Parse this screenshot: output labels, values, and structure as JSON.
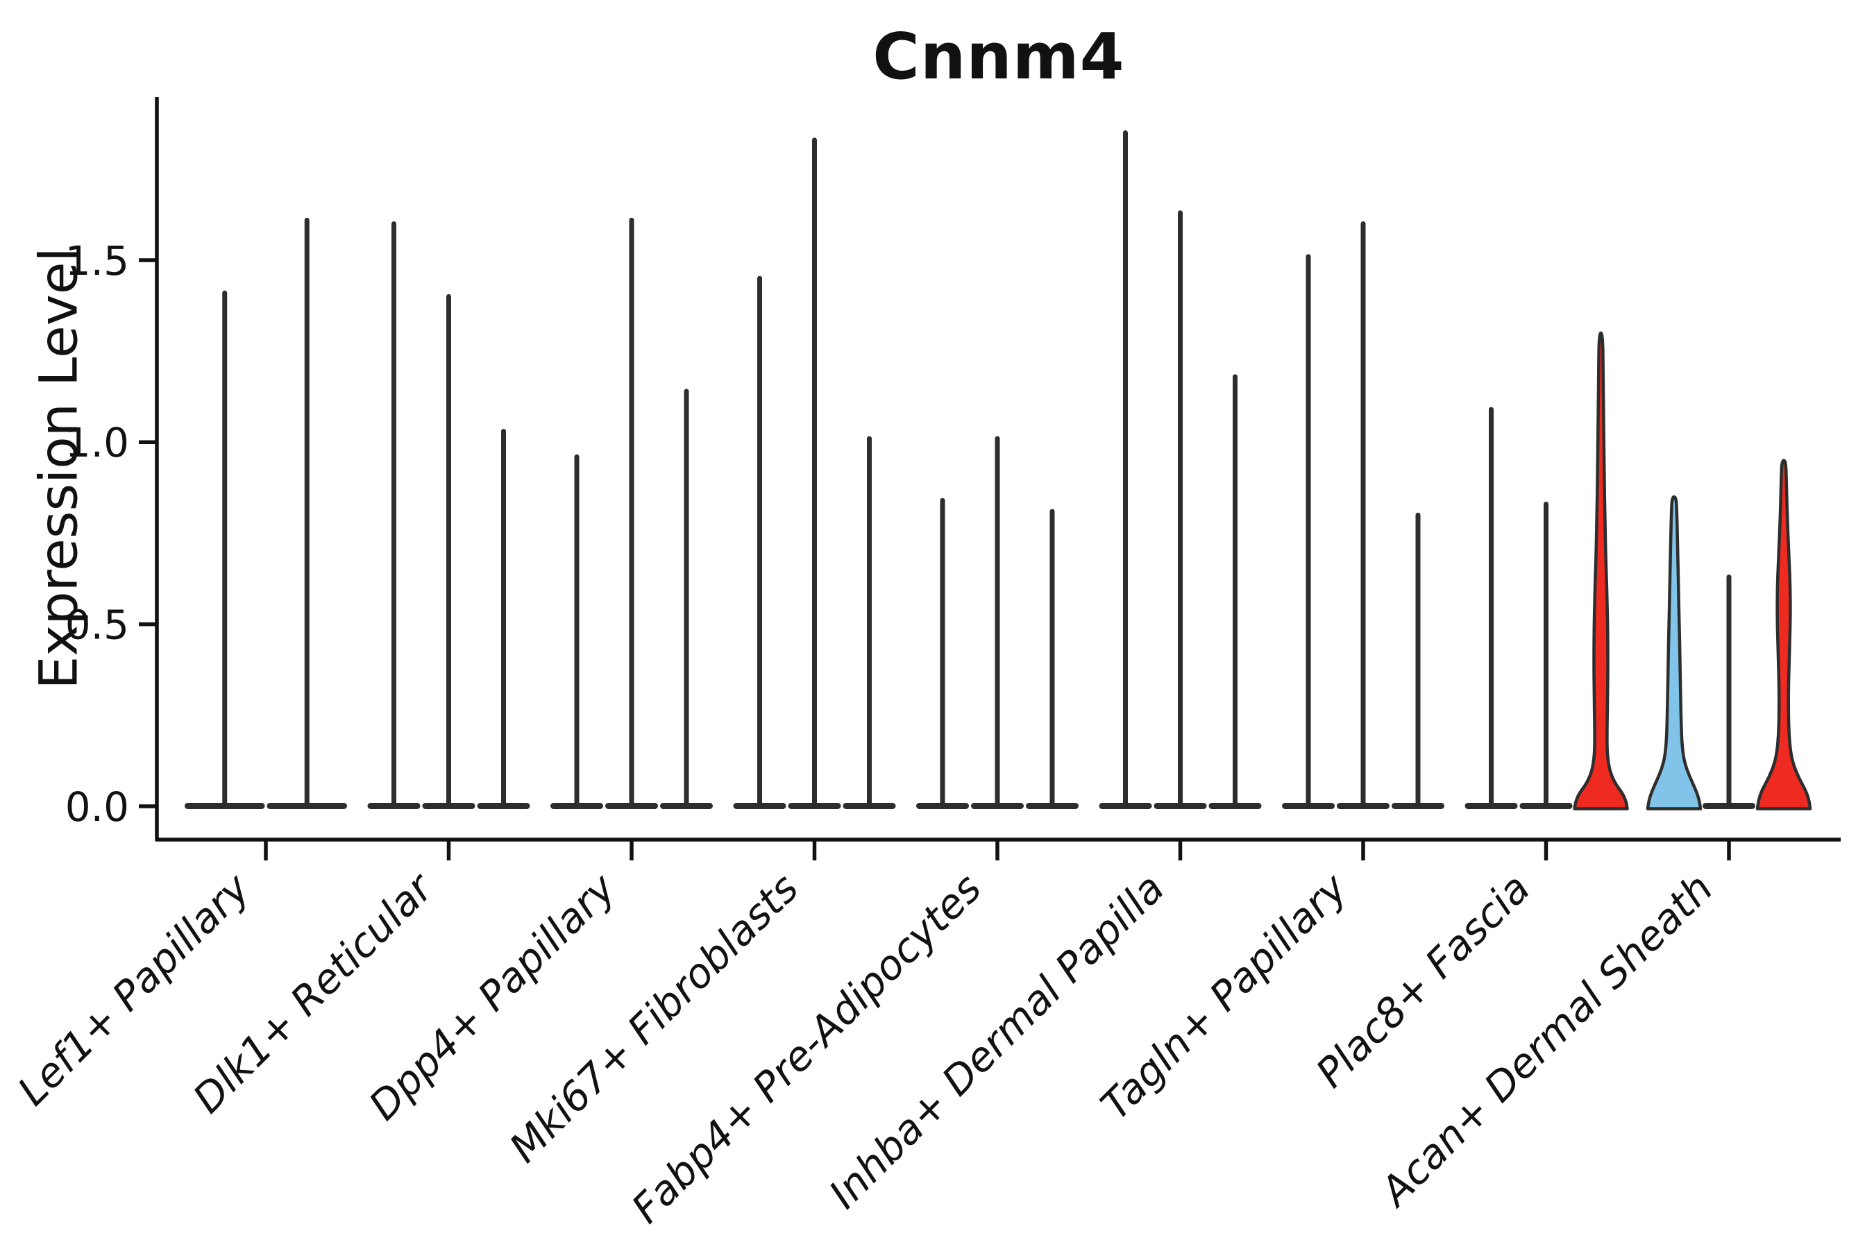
{
  "chart_data": {
    "type": "violin",
    "title": "Cnnm4",
    "ylabel": "Expression Level",
    "xlabel": "",
    "ytick_labels": [
      "0.0",
      "0.5",
      "1.0",
      "1.5"
    ],
    "ytick_values": [
      0.0,
      0.5,
      1.0,
      1.5
    ],
    "ylim": [
      -0.09,
      1.95
    ],
    "grid": "off",
    "legend": "none",
    "categories": [
      "Lef1+ Papillary",
      "Dlk1+ Reticular",
      "Dpp4+ Papillary",
      "Mki67+ Fibroblasts",
      "Fabp4+ Pre-Adipocytes",
      "Inhba+ Dermal Papilla",
      "Tagln+ Papillary",
      "Plac8+ Fascia",
      "Acan+ Dermal Sheath"
    ],
    "groups": [
      {
        "label": "Lef1+ Papillary",
        "peaks": [
          1.41,
          1.61
        ],
        "fills": [
          null,
          null
        ],
        "profiles": [
          null,
          null
        ]
      },
      {
        "label": "Dlk1+ Reticular",
        "peaks": [
          1.6,
          1.4,
          1.03
        ],
        "fills": [
          null,
          null,
          null
        ],
        "profiles": [
          null,
          null,
          null
        ]
      },
      {
        "label": "Dpp4+ Papillary",
        "peaks": [
          0.96,
          1.61,
          1.14
        ],
        "fills": [
          null,
          null,
          null
        ],
        "profiles": [
          null,
          null,
          null
        ]
      },
      {
        "label": "Mki67+ Fibroblasts",
        "peaks": [
          1.45,
          1.83,
          1.01
        ],
        "fills": [
          null,
          null,
          null
        ],
        "profiles": [
          null,
          null,
          null
        ]
      },
      {
        "label": "Fabp4+ Pre-Adipocytes",
        "peaks": [
          0.84,
          1.01,
          0.81
        ],
        "fills": [
          null,
          null,
          null
        ],
        "profiles": [
          null,
          null,
          null
        ]
      },
      {
        "label": "Inhba+ Dermal Papilla",
        "peaks": [
          1.85,
          1.63,
          1.18
        ],
        "fills": [
          null,
          null,
          null
        ],
        "profiles": [
          null,
          null,
          null
        ]
      },
      {
        "label": "Tagln+ Papillary",
        "peaks": [
          1.51,
          1.6,
          0.8
        ],
        "fills": [
          null,
          null,
          null
        ],
        "profiles": [
          null,
          null,
          null
        ]
      },
      {
        "label": "Plac8+ Fascia",
        "peaks": [
          1.09,
          0.83,
          1.3
        ],
        "fills": [
          null,
          null,
          "red"
        ],
        "profiles": [
          null,
          null,
          "red_tall"
        ]
      },
      {
        "label": "Acan+ Dermal Sheath",
        "peaks": [
          0.85,
          0.63,
          0.95
        ],
        "fills": [
          "blue",
          null,
          "red"
        ],
        "profiles": [
          "blue",
          null,
          "red_short"
        ]
      }
    ],
    "profiles": {
      "red_tall": [
        [
          0,
          1
        ],
        [
          0.012,
          0.97
        ],
        [
          0.03,
          0.85
        ],
        [
          0.05,
          0.58
        ],
        [
          0.07,
          0.4
        ],
        [
          0.09,
          0.3
        ],
        [
          0.12,
          0.235
        ],
        [
          0.17,
          0.235
        ],
        [
          0.24,
          0.255
        ],
        [
          0.31,
          0.265
        ],
        [
          0.39,
          0.255
        ],
        [
          0.47,
          0.22
        ],
        [
          0.54,
          0.18
        ],
        [
          0.62,
          0.15
        ],
        [
          0.71,
          0.125
        ],
        [
          0.81,
          0.105
        ],
        [
          0.9,
          0.09
        ],
        [
          1,
          0.07
        ]
      ],
      "blue": [
        [
          0,
          1
        ],
        [
          0.02,
          0.97
        ],
        [
          0.05,
          0.87
        ],
        [
          0.09,
          0.66
        ],
        [
          0.13,
          0.46
        ],
        [
          0.17,
          0.345
        ],
        [
          0.22,
          0.29
        ],
        [
          0.29,
          0.262
        ],
        [
          0.38,
          0.243
        ],
        [
          0.48,
          0.222
        ],
        [
          0.58,
          0.198
        ],
        [
          0.68,
          0.172
        ],
        [
          0.78,
          0.148
        ],
        [
          0.87,
          0.125
        ],
        [
          0.94,
          0.105
        ],
        [
          1,
          0.078
        ]
      ],
      "red_short": [
        [
          0,
          1
        ],
        [
          0.02,
          0.97
        ],
        [
          0.05,
          0.85
        ],
        [
          0.09,
          0.56
        ],
        [
          0.13,
          0.35
        ],
        [
          0.17,
          0.245
        ],
        [
          0.22,
          0.195
        ],
        [
          0.29,
          0.175
        ],
        [
          0.37,
          0.185
        ],
        [
          0.46,
          0.22
        ],
        [
          0.55,
          0.25
        ],
        [
          0.63,
          0.245
        ],
        [
          0.71,
          0.205
        ],
        [
          0.79,
          0.158
        ],
        [
          0.87,
          0.122
        ],
        [
          0.94,
          0.1
        ],
        [
          1,
          0.075
        ]
      ]
    },
    "colors": {
      "red": "#ee2a21",
      "blue": "#82c4e9",
      "violin_line": "#2d2d2d",
      "axis": "#111111"
    }
  }
}
